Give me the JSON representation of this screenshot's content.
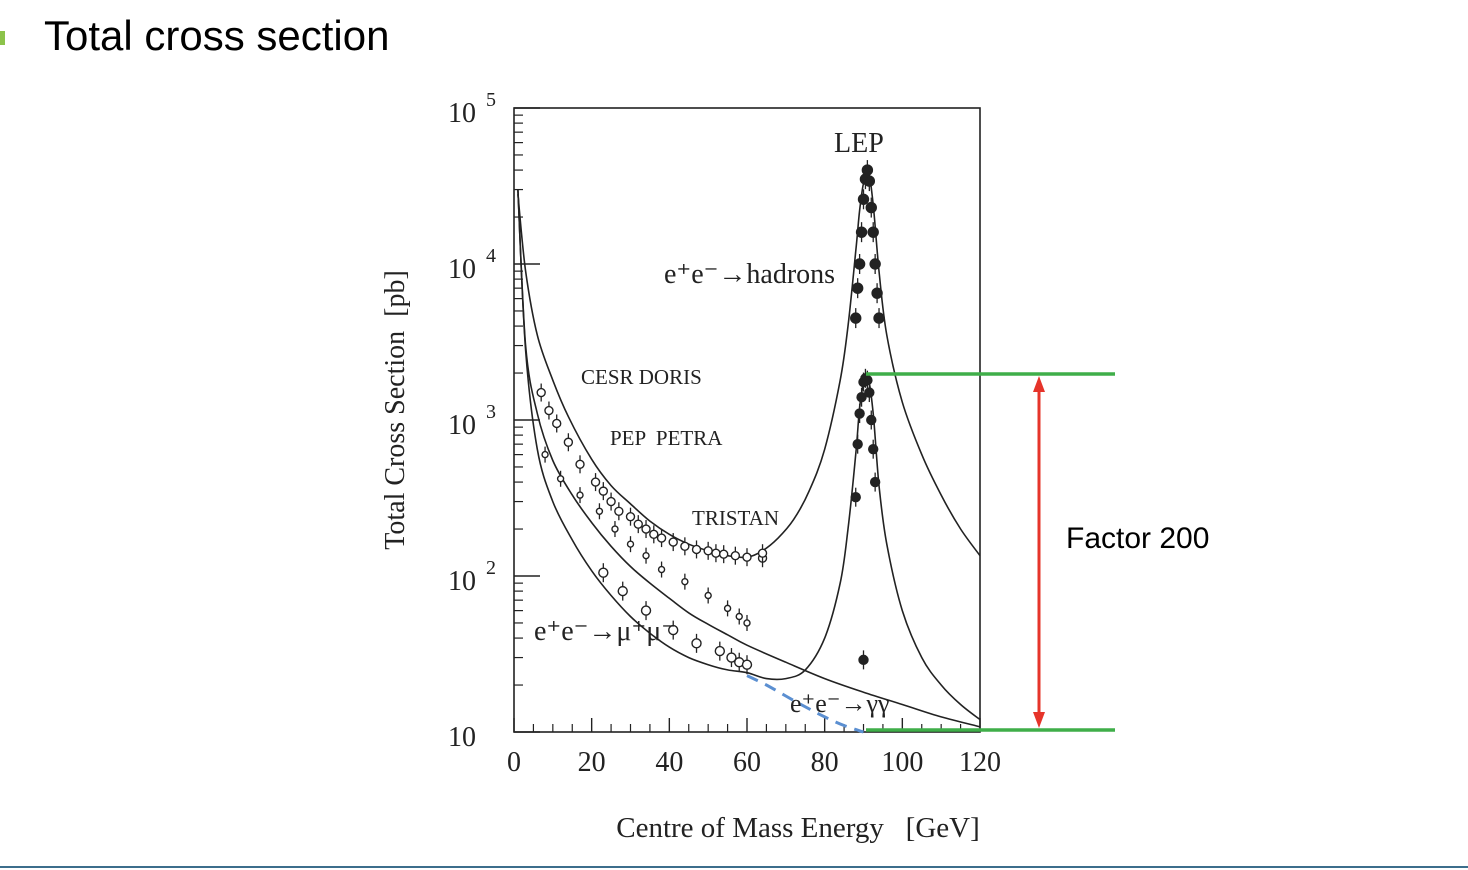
{
  "page": {
    "title": "Total cross section"
  },
  "colors": {
    "green": "#3fae49",
    "red": "#e6342a",
    "blue_dash": "#5b8fd1",
    "ink": "#222222",
    "bullet": "#8cc34a",
    "rule": "#3c6e8c"
  },
  "chart_data": {
    "type": "line",
    "xlabel": "Centre of Mass Energy   [GeV]",
    "ylabel": "Total Cross Section  [pb]",
    "xlim": [
      0,
      120
    ],
    "ylim": [
      10,
      100000
    ],
    "yscale": "log",
    "x_ticks": [
      "0",
      "20",
      "40",
      "60",
      "80",
      "100",
      "120"
    ],
    "y_ticks": [
      {
        "base": "10",
        "exp": "5"
      },
      {
        "base": "10",
        "exp": "4"
      },
      {
        "base": "10",
        "exp": "3"
      },
      {
        "base": "10",
        "exp": "2"
      },
      {
        "base": "10",
        "exp": ""
      }
    ],
    "labels": {
      "lep": "LEP",
      "hadrons": "e⁺e⁻→hadrons",
      "mumu": "e⁺e⁻→μ⁺μ⁻",
      "gammagamma": "e⁺e⁻→γγ",
      "cesr_doris": "CESR DORIS",
      "pep_petra": "PEP  PETRA",
      "tristan": "TRISTAN"
    },
    "series": [
      {
        "key": "hadrons",
        "x": [
          1,
          3,
          6,
          10,
          14,
          20,
          25,
          30,
          35,
          40,
          45,
          50,
          55,
          60,
          64,
          68,
          72,
          76,
          80,
          84,
          86,
          88,
          89,
          90,
          91.2,
          92.5,
          94,
          96,
          100,
          105,
          110,
          115,
          120
        ],
        "y": [
          28000,
          9000,
          3500,
          1800,
          1050,
          560,
          380,
          290,
          225,
          185,
          160,
          145,
          135,
          132,
          145,
          175,
          230,
          350,
          650,
          1800,
          4000,
          12000,
          22000,
          33000,
          40000,
          24000,
          9000,
          3500,
          1300,
          600,
          330,
          200,
          135
        ]
      },
      {
        "key": "mumu",
        "x": [
          1,
          3,
          6,
          10,
          15,
          20,
          25,
          30,
          35,
          40,
          45,
          50,
          55,
          60,
          70,
          80,
          90,
          100,
          110,
          120
        ],
        "y": [
          30000,
          3000,
          1100,
          550,
          330,
          220,
          155,
          115,
          90,
          72,
          58,
          49,
          42,
          36,
          28,
          22,
          18,
          15,
          12.5,
          10.8
        ]
      },
      {
        "key": "mumu_peak",
        "x": [
          1,
          3,
          6,
          10,
          15,
          20,
          25,
          30,
          35,
          40,
          45,
          50,
          55,
          60,
          65,
          70,
          75,
          80,
          84,
          86,
          88,
          89,
          90,
          91.2,
          92.5,
          94,
          96,
          100,
          105,
          110,
          115,
          120
        ],
        "y": [
          30000,
          2800,
          650,
          300,
          170,
          108,
          75,
          55,
          43,
          35,
          30,
          27,
          25,
          24,
          22,
          22,
          25,
          40,
          90,
          200,
          600,
          1200,
          1700,
          1850,
          1100,
          380,
          160,
          60,
          30,
          20,
          15,
          12
        ]
      },
      {
        "key": "gammagamma",
        "x": [
          60,
          65,
          70,
          75,
          80,
          85,
          90
        ],
        "y": [
          23,
          20,
          17,
          14.5,
          12.5,
          11,
          10
        ]
      }
    ],
    "data_points": {
      "hadrons_low": [
        [
          7,
          1500
        ],
        [
          9,
          1150
        ],
        [
          11,
          950
        ],
        [
          14,
          720
        ],
        [
          17,
          520
        ],
        [
          21,
          400
        ],
        [
          23,
          350
        ],
        [
          25,
          300
        ],
        [
          27,
          260
        ],
        [
          30,
          240
        ],
        [
          32,
          215
        ],
        [
          34,
          200
        ],
        [
          36,
          185
        ],
        [
          38,
          175
        ],
        [
          41,
          165
        ],
        [
          44,
          155
        ],
        [
          47,
          148
        ],
        [
          50,
          145
        ],
        [
          52,
          140
        ],
        [
          54,
          138
        ],
        [
          57,
          135
        ],
        [
          60,
          132
        ],
        [
          64,
          130
        ],
        [
          64,
          140
        ]
      ],
      "hadrons_lep": [
        [
          88,
          4500
        ],
        [
          88.5,
          7000
        ],
        [
          89,
          10000
        ],
        [
          89.5,
          16000
        ],
        [
          90,
          26000
        ],
        [
          90.5,
          35000
        ],
        [
          91,
          40000
        ],
        [
          91.5,
          34000
        ],
        [
          92,
          23000
        ],
        [
          92.5,
          16000
        ],
        [
          93,
          10000
        ],
        [
          93.5,
          6500
        ],
        [
          94,
          4500
        ]
      ],
      "mumu_low": [
        [
          8,
          600
        ],
        [
          12,
          420
        ],
        [
          17,
          330
        ],
        [
          22,
          260
        ],
        [
          26,
          200
        ],
        [
          30,
          160
        ],
        [
          34,
          135
        ],
        [
          38,
          110
        ],
        [
          44,
          92
        ],
        [
          50,
          75
        ],
        [
          55,
          62
        ],
        [
          58,
          55
        ],
        [
          60,
          50
        ]
      ],
      "mumu_tail": [
        [
          23,
          105
        ],
        [
          28,
          80
        ],
        [
          34,
          60
        ],
        [
          41,
          45
        ],
        [
          47,
          37
        ],
        [
          53,
          33
        ],
        [
          56,
          30
        ],
        [
          58,
          28
        ],
        [
          60,
          27
        ]
      ],
      "mumu_lep": [
        [
          88,
          320
        ],
        [
          88.5,
          700
        ],
        [
          89,
          1100
        ],
        [
          89.5,
          1400
        ],
        [
          90,
          1750
        ],
        [
          90.5,
          1850
        ],
        [
          91,
          1800
        ],
        [
          91.5,
          1500
        ],
        [
          92,
          1000
        ],
        [
          92.5,
          650
        ],
        [
          93,
          400
        ],
        [
          90,
          29
        ]
      ]
    },
    "annotation": {
      "text": "Factor 200"
    }
  }
}
